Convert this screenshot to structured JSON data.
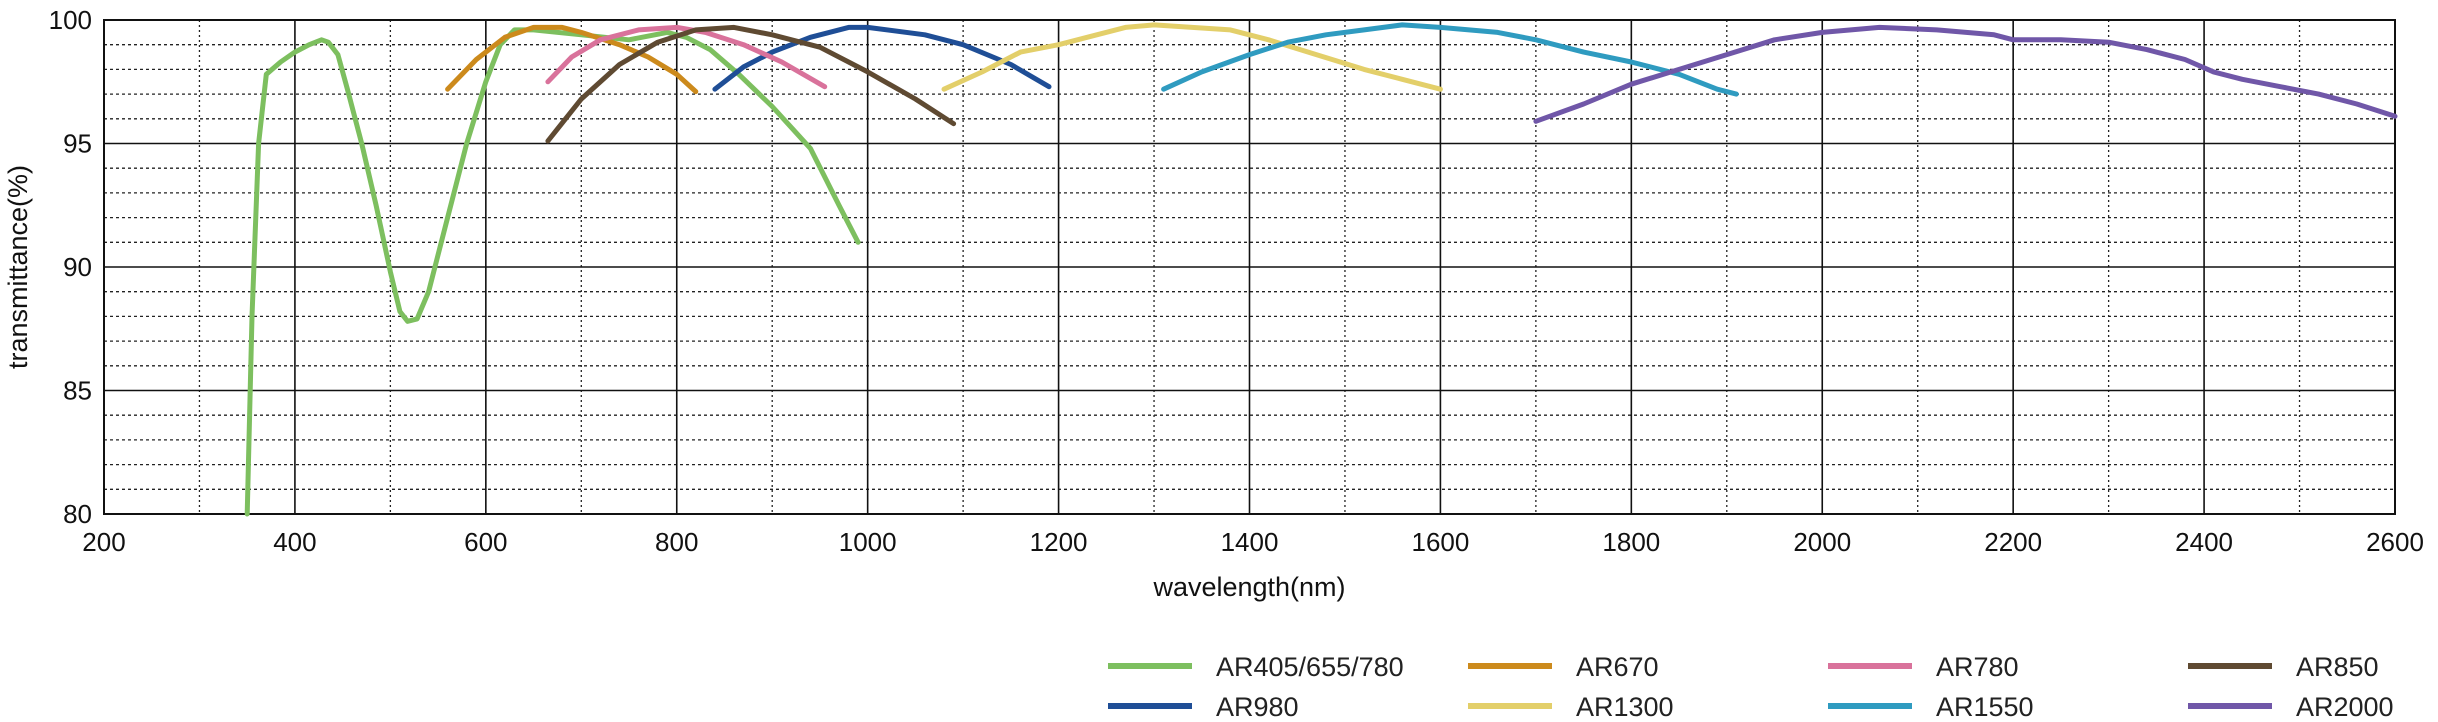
{
  "chart_data": {
    "type": "line",
    "xlabel": "wavelength(nm)",
    "ylabel": "transmittance(%)",
    "xlim": [
      200,
      2600
    ],
    "ylim": [
      80,
      100
    ],
    "x_ticks": [
      200,
      400,
      600,
      800,
      1000,
      1200,
      1400,
      1600,
      1800,
      2000,
      2200,
      2400,
      2600
    ],
    "y_ticks": [
      80,
      85,
      90,
      95,
      100
    ],
    "grid": true,
    "legend_position": "bottom-right",
    "series": [
      {
        "name": "AR405/655/780",
        "color": "#7dbf5f",
        "points": [
          [
            350,
            80
          ],
          [
            355,
            88
          ],
          [
            362,
            95
          ],
          [
            370,
            97.8
          ],
          [
            385,
            98.3
          ],
          [
            400,
            98.7
          ],
          [
            415,
            99.0
          ],
          [
            428,
            99.2
          ],
          [
            435,
            99.1
          ],
          [
            445,
            98.6
          ],
          [
            455,
            97.2
          ],
          [
            470,
            95.0
          ],
          [
            485,
            92.5
          ],
          [
            500,
            89.8
          ],
          [
            510,
            88.2
          ],
          [
            518,
            87.8
          ],
          [
            528,
            87.9
          ],
          [
            540,
            89.0
          ],
          [
            560,
            92.0
          ],
          [
            580,
            95.0
          ],
          [
            600,
            97.5
          ],
          [
            615,
            99.0
          ],
          [
            630,
            99.6
          ],
          [
            650,
            99.6
          ],
          [
            700,
            99.4
          ],
          [
            750,
            99.2
          ],
          [
            790,
            99.5
          ],
          [
            810,
            99.3
          ],
          [
            835,
            98.8
          ],
          [
            865,
            97.8
          ],
          [
            900,
            96.5
          ],
          [
            940,
            94.8
          ],
          [
            970,
            92.5
          ],
          [
            990,
            91.0
          ]
        ]
      },
      {
        "name": "AR980",
        "color": "#1f4e96",
        "points": [
          [
            840,
            97.2
          ],
          [
            870,
            98.1
          ],
          [
            900,
            98.7
          ],
          [
            940,
            99.3
          ],
          [
            980,
            99.7
          ],
          [
            1000,
            99.7
          ],
          [
            1060,
            99.4
          ],
          [
            1100,
            99.0
          ],
          [
            1150,
            98.2
          ],
          [
            1190,
            97.3
          ]
        ]
      },
      {
        "name": "AR670",
        "color": "#cc8a1c",
        "points": [
          [
            560,
            97.2
          ],
          [
            590,
            98.4
          ],
          [
            620,
            99.3
          ],
          [
            650,
            99.7
          ],
          [
            680,
            99.7
          ],
          [
            700,
            99.5
          ],
          [
            740,
            99.0
          ],
          [
            770,
            98.5
          ],
          [
            800,
            97.8
          ],
          [
            820,
            97.1
          ]
        ]
      },
      {
        "name": "AR1300",
        "color": "#e3cf6a",
        "points": [
          [
            1080,
            97.2
          ],
          [
            1120,
            97.9
          ],
          [
            1160,
            98.7
          ],
          [
            1200,
            99.0
          ],
          [
            1240,
            99.4
          ],
          [
            1270,
            99.7
          ],
          [
            1300,
            99.8
          ],
          [
            1340,
            99.7
          ],
          [
            1380,
            99.6
          ],
          [
            1420,
            99.2
          ],
          [
            1470,
            98.6
          ],
          [
            1520,
            98.0
          ],
          [
            1560,
            97.6
          ],
          [
            1600,
            97.2
          ]
        ]
      },
      {
        "name": "AR780",
        "color": "#d9729b",
        "points": [
          [
            665,
            97.5
          ],
          [
            690,
            98.5
          ],
          [
            720,
            99.2
          ],
          [
            760,
            99.6
          ],
          [
            800,
            99.7
          ],
          [
            830,
            99.5
          ],
          [
            870,
            99.0
          ],
          [
            910,
            98.3
          ],
          [
            955,
            97.3
          ]
        ]
      },
      {
        "name": "AR1550",
        "color": "#2f9bc0",
        "points": [
          [
            1310,
            97.2
          ],
          [
            1350,
            97.9
          ],
          [
            1400,
            98.6
          ],
          [
            1440,
            99.1
          ],
          [
            1480,
            99.4
          ],
          [
            1520,
            99.6
          ],
          [
            1560,
            99.8
          ],
          [
            1600,
            99.7
          ],
          [
            1660,
            99.5
          ],
          [
            1700,
            99.2
          ],
          [
            1750,
            98.7
          ],
          [
            1800,
            98.3
          ],
          [
            1850,
            97.8
          ],
          [
            1890,
            97.2
          ],
          [
            1910,
            97.0
          ]
        ]
      },
      {
        "name": "AR850",
        "color": "#5f4a32",
        "points": [
          [
            665,
            95.1
          ],
          [
            700,
            96.8
          ],
          [
            740,
            98.2
          ],
          [
            780,
            99.1
          ],
          [
            820,
            99.6
          ],
          [
            860,
            99.7
          ],
          [
            900,
            99.4
          ],
          [
            950,
            98.9
          ],
          [
            1000,
            97.9
          ],
          [
            1050,
            96.8
          ],
          [
            1090,
            95.8
          ]
        ]
      },
      {
        "name": "AR2000",
        "color": "#7057a8",
        "points": [
          [
            1700,
            95.9
          ],
          [
            1750,
            96.6
          ],
          [
            1800,
            97.4
          ],
          [
            1850,
            98.0
          ],
          [
            1900,
            98.6
          ],
          [
            1950,
            99.2
          ],
          [
            2000,
            99.5
          ],
          [
            2060,
            99.7
          ],
          [
            2120,
            99.6
          ],
          [
            2180,
            99.4
          ],
          [
            2200,
            99.2
          ],
          [
            2250,
            99.2
          ],
          [
            2300,
            99.1
          ],
          [
            2340,
            98.8
          ],
          [
            2380,
            98.4
          ],
          [
            2410,
            97.9
          ],
          [
            2440,
            97.6
          ],
          [
            2480,
            97.3
          ],
          [
            2520,
            97.0
          ],
          [
            2560,
            96.6
          ],
          [
            2600,
            96.1
          ]
        ]
      }
    ]
  }
}
